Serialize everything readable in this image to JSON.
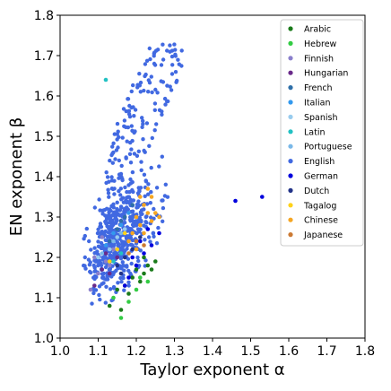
{
  "chart_data": {
    "type": "scatter",
    "xlabel": "Taylor exponent α",
    "ylabel": "EN exponent β",
    "xlim": [
      1.0,
      1.8
    ],
    "ylim": [
      1.0,
      1.8
    ],
    "xticks": [
      "1.0",
      "1.1",
      "1.2",
      "1.3",
      "1.4",
      "1.5",
      "1.6",
      "1.7",
      "1.8"
    ],
    "yticks": [
      "1.0",
      "1.1",
      "1.2",
      "1.3",
      "1.4",
      "1.5",
      "1.6",
      "1.7",
      "1.8"
    ],
    "grid": false,
    "legend_position": "top-right",
    "series": [
      {
        "name": "Arabic",
        "color": "#1a7a1a",
        "points": [
          [
            1.13,
            1.08
          ],
          [
            1.15,
            1.12
          ],
          [
            1.17,
            1.13
          ],
          [
            1.19,
            1.15
          ],
          [
            1.2,
            1.17
          ],
          [
            1.22,
            1.16
          ],
          [
            1.23,
            1.18
          ],
          [
            1.24,
            1.17
          ],
          [
            1.21,
            1.14
          ],
          [
            1.18,
            1.11
          ],
          [
            1.16,
            1.07
          ],
          [
            1.22,
            1.2
          ],
          [
            1.25,
            1.19
          ]
        ]
      },
      {
        "name": "Hebrew",
        "color": "#33cc44",
        "points": [
          [
            1.16,
            1.05
          ],
          [
            1.18,
            1.09
          ],
          [
            1.2,
            1.12
          ],
          [
            1.14,
            1.1
          ],
          [
            1.21,
            1.15
          ],
          [
            1.23,
            1.14
          ]
        ]
      },
      {
        "name": "Finnish",
        "color": "#8a7fcc",
        "points": [
          [
            1.08,
            1.12
          ],
          [
            1.1,
            1.16
          ],
          [
            1.12,
            1.19
          ],
          [
            1.14,
            1.22
          ],
          [
            1.11,
            1.25
          ],
          [
            1.13,
            1.18
          ],
          [
            1.09,
            1.2
          ]
        ]
      },
      {
        "name": "Hungarian",
        "color": "#6a2a8a",
        "points": [
          [
            1.09,
            1.13
          ],
          [
            1.11,
            1.17
          ],
          [
            1.13,
            1.16
          ],
          [
            1.12,
            1.21
          ],
          [
            1.15,
            1.2
          ]
        ]
      },
      {
        "name": "French",
        "color": "#2e6fa8",
        "points": [
          [
            1.13,
            1.24
          ],
          [
            1.15,
            1.27
          ],
          [
            1.17,
            1.3
          ],
          [
            1.19,
            1.33
          ],
          [
            1.16,
            1.29
          ]
        ]
      },
      {
        "name": "Italian",
        "color": "#3399ee",
        "points": [
          [
            1.12,
            1.23
          ],
          [
            1.14,
            1.26
          ],
          [
            1.16,
            1.28
          ],
          [
            1.18,
            1.31
          ]
        ]
      },
      {
        "name": "Spanish",
        "color": "#99ccee",
        "points": [
          [
            1.1,
            1.2
          ],
          [
            1.13,
            1.22
          ],
          [
            1.15,
            1.25
          ],
          [
            1.17,
            1.27
          ]
        ]
      },
      {
        "name": "Latin",
        "color": "#22c1c3",
        "points": [
          [
            1.12,
            1.64
          ],
          [
            1.14,
            1.19
          ],
          [
            1.16,
            1.21
          ]
        ]
      },
      {
        "name": "Portuguese",
        "color": "#7ab8e8",
        "points": [
          [
            1.11,
            1.21
          ],
          [
            1.14,
            1.24
          ],
          [
            1.16,
            1.26
          ]
        ]
      },
      {
        "name": "English",
        "color": "#4169e1",
        "points": []
      },
      {
        "name": "German",
        "color": "#0000dd",
        "points": [
          [
            1.46,
            1.34
          ],
          [
            1.53,
            1.35
          ],
          [
            1.18,
            1.15
          ],
          [
            1.2,
            1.18
          ],
          [
            1.22,
            1.21
          ],
          [
            1.24,
            1.23
          ],
          [
            1.26,
            1.26
          ],
          [
            1.19,
            1.2
          ],
          [
            1.21,
            1.24
          ],
          [
            1.23,
            1.27
          ],
          [
            1.17,
            1.13
          ]
        ]
      },
      {
        "name": "Dutch",
        "color": "#223388",
        "points": [
          [
            1.15,
            1.18
          ],
          [
            1.17,
            1.2
          ],
          [
            1.19,
            1.22
          ],
          [
            1.21,
            1.25
          ],
          [
            1.16,
            1.16
          ]
        ]
      },
      {
        "name": "Tagalog",
        "color": "#ffd21a",
        "points": [
          [
            1.13,
            1.19
          ],
          [
            1.15,
            1.22
          ],
          [
            1.17,
            1.26
          ]
        ]
      },
      {
        "name": "Chinese",
        "color": "#f5a623",
        "points": [
          [
            1.2,
            1.3
          ],
          [
            1.22,
            1.33
          ],
          [
            1.24,
            1.29
          ],
          [
            1.19,
            1.26
          ],
          [
            1.23,
            1.37
          ],
          [
            1.21,
            1.28
          ],
          [
            1.25,
            1.31
          ],
          [
            1.18,
            1.24
          ],
          [
            1.22,
            1.26
          ],
          [
            1.24,
            1.35
          ],
          [
            1.2,
            1.22
          ],
          [
            1.26,
            1.3
          ],
          [
            1.21,
            1.35
          ],
          [
            1.23,
            1.31
          ]
        ]
      },
      {
        "name": "Japanese",
        "color": "#cc7a33",
        "points": [
          [
            1.18,
            1.21
          ],
          [
            1.2,
            1.24
          ],
          [
            1.22,
            1.23
          ]
        ]
      }
    ],
    "english_cloud": {
      "count": 700,
      "core_center": [
        1.15,
        1.24
      ],
      "core_spread": [
        0.05,
        0.06
      ],
      "upper_slope": 2.2,
      "x_range": [
        1.06,
        1.35
      ],
      "y_range": [
        1.08,
        1.73
      ]
    }
  }
}
